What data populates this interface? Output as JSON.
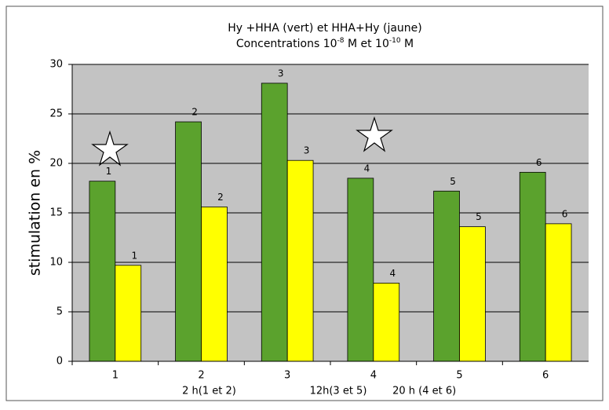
{
  "chart_data": {
    "type": "bar",
    "title": "Hy +HHA (vert) et  HHA+Hy (jaune)",
    "subtitle_parts": [
      "Concentrations 10",
      "-8",
      " M et 10",
      "-10",
      " M"
    ],
    "y_label": "stimulation en %",
    "categories": [
      "1",
      "2",
      "3",
      "4",
      "5",
      "6"
    ],
    "series": [
      {
        "color": "#5ba22d",
        "values": [
          18.2,
          24.2,
          28.1,
          18.5,
          17.2,
          19.1
        ],
        "bar_labels": [
          "1",
          "2",
          "3",
          "4",
          "5",
          "6"
        ]
      },
      {
        "color": "#ffff00",
        "values": [
          9.7,
          15.6,
          20.3,
          7.9,
          13.6,
          13.9
        ],
        "bar_labels": [
          "1",
          "2",
          "3",
          "4",
          "5",
          "6"
        ]
      }
    ],
    "annotations": [
      "2 h(1 et 2)",
      "12h(3 et 5)",
      "20 h (4 et 6)"
    ],
    "ylim": [
      0,
      30
    ],
    "yticks": [
      0,
      5,
      10,
      15,
      20,
      25,
      30
    ],
    "grid": true
  }
}
